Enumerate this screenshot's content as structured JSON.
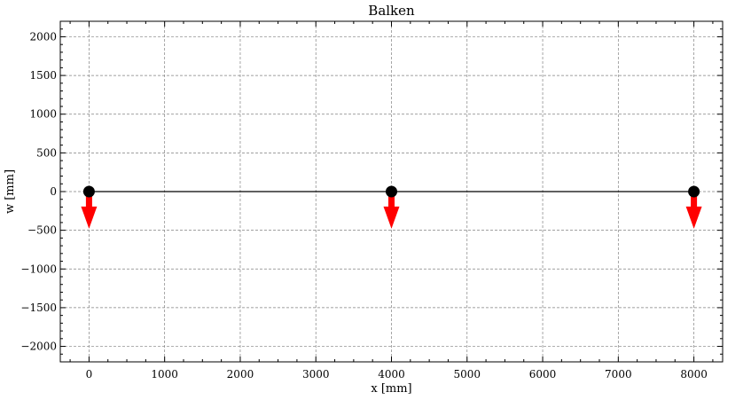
{
  "chart_data": {
    "type": "line",
    "title": "Balken",
    "xlabel": "x [mm]",
    "ylabel": "w [mm]",
    "xlim": [
      -380,
      8380
    ],
    "ylim": [
      -2200,
      2200
    ],
    "grid": true,
    "x_ticks": [
      0,
      1000,
      2000,
      3000,
      4000,
      5000,
      6000,
      7000,
      8000
    ],
    "x_tick_labels": [
      "0",
      "1000",
      "2000",
      "3000",
      "4000",
      "5000",
      "6000",
      "7000",
      "8000"
    ],
    "y_ticks": [
      -2000,
      -1500,
      -1000,
      -500,
      0,
      500,
      1000,
      1500,
      2000
    ],
    "y_tick_labels": [
      "−2000",
      "−1500",
      "−1000",
      "−500",
      "0",
      "500",
      "1000",
      "1500",
      "2000"
    ],
    "beam": {
      "x": [
        0,
        8000
      ],
      "y": [
        0,
        0
      ],
      "color": "#000000"
    },
    "nodes": {
      "x": [
        0,
        4000,
        8000
      ],
      "y": [
        0,
        0,
        0
      ],
      "color": "#000000"
    },
    "loads": {
      "color": "#ff0000",
      "items": [
        {
          "x": 0,
          "y_from": 0,
          "y_to": -480
        },
        {
          "x": 4000,
          "y_from": 0,
          "y_to": -480
        },
        {
          "x": 8000,
          "y_from": 0,
          "y_to": -480
        }
      ]
    }
  }
}
